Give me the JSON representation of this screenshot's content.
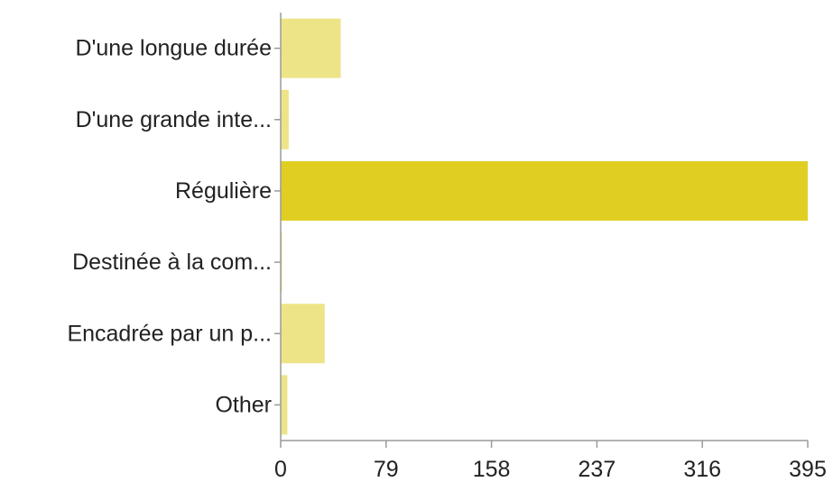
{
  "chart_data": {
    "type": "bar",
    "orientation": "horizontal",
    "categories": [
      "D'une longue durée",
      "D'une grande inte...",
      "Régulière",
      "Destinée à la com...",
      "Encadrée par un p...",
      "Other"
    ],
    "values": [
      45,
      6,
      395,
      1,
      33,
      5
    ],
    "xlim": [
      0,
      395
    ],
    "xticks": [
      0,
      79,
      158,
      237,
      316,
      395
    ],
    "xtick_labels": [
      "0",
      "79",
      "158",
      "237",
      "316",
      "395"
    ],
    "title": "",
    "xlabel": "",
    "ylabel": "",
    "grid": false,
    "colors": {
      "default_bar": "#ede488",
      "highlight_bar": "#e0cf22",
      "highlight_index": 2
    }
  }
}
